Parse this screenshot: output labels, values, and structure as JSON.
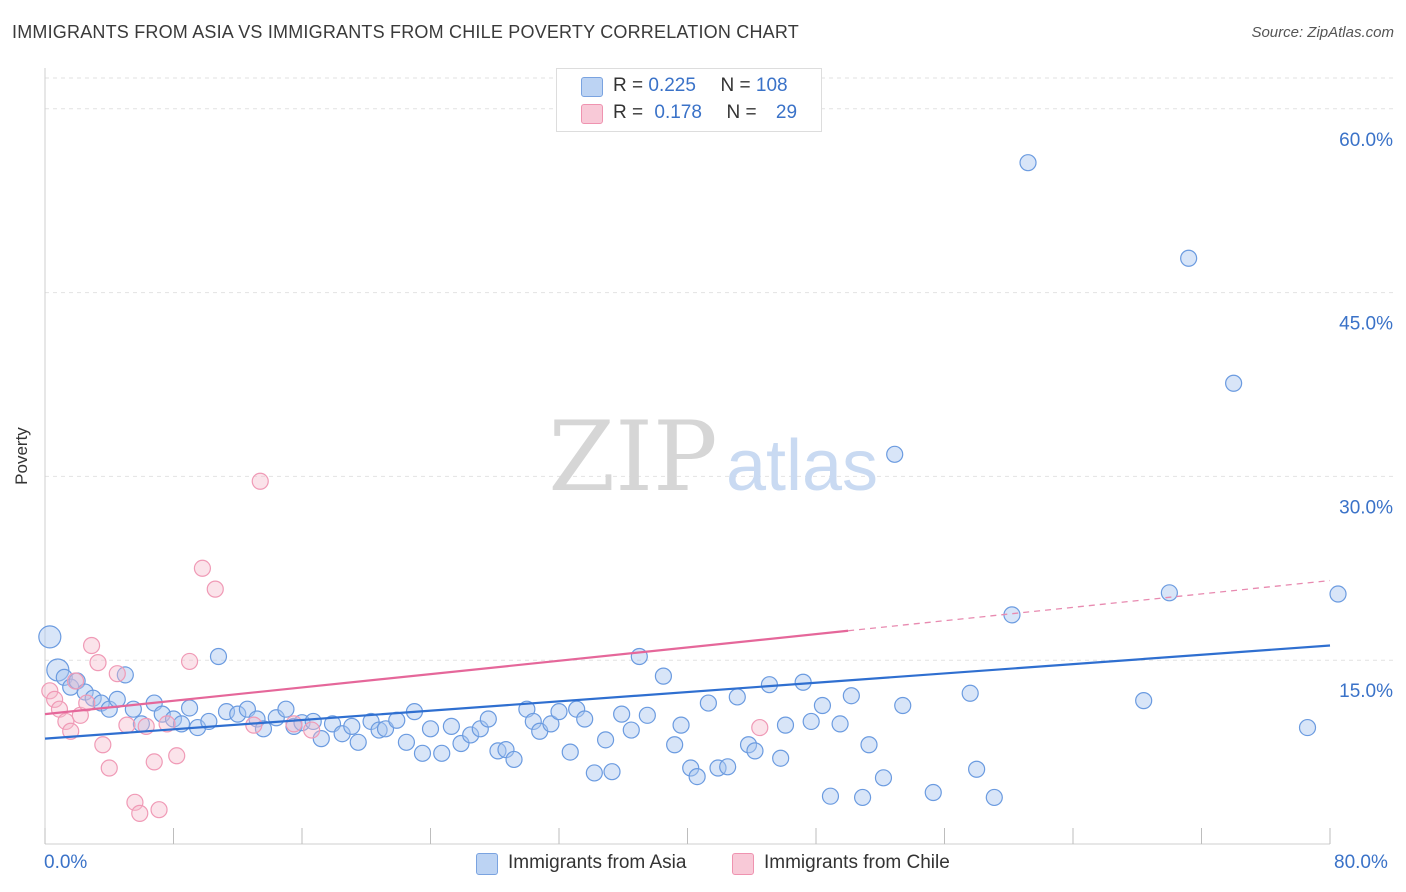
{
  "title": "IMMIGRANTS FROM ASIA VS IMMIGRANTS FROM CHILE POVERTY CORRELATION CHART",
  "source": "Source: ZipAtlas.com",
  "watermark": {
    "zip": "ZIP",
    "atlas": "atlas"
  },
  "legend": {
    "asia": {
      "r_label": "R =",
      "r_value": "0.225",
      "n_label": "N =",
      "n_value": "108",
      "color": "#a9c6f0"
    },
    "chile": {
      "r_label": "R =",
      "r_value": "0.178",
      "n_label": "N =",
      "n_value": "29",
      "color": "#f6b9cb"
    }
  },
  "bottom_legend": {
    "asia": "Immigrants from Asia",
    "chile": "Immigrants from Chile"
  },
  "chart_data": {
    "type": "scatter",
    "title": "IMMIGRANTS FROM ASIA VS IMMIGRANTS FROM CHILE POVERTY CORRELATION CHART",
    "xlabel": "",
    "ylabel": "Poverty",
    "xlim": [
      0,
      80
    ],
    "ylim": [
      0,
      63
    ],
    "x_tick_labels": [
      "0.0%",
      "80.0%"
    ],
    "y_ticks": [
      15,
      30,
      45,
      60
    ],
    "y_tick_labels": [
      "15.0%",
      "30.0%",
      "45.0%",
      "60.0%"
    ],
    "series": [
      {
        "name": "Immigrants from Asia",
        "color": "#6b9be0",
        "trend": {
          "x0": 0,
          "y0": 8.6,
          "x1": 80,
          "y1": 16.2
        },
        "points": [
          [
            0.3,
            16.9
          ],
          [
            0.8,
            14.2
          ],
          [
            1.2,
            13.6
          ],
          [
            1.6,
            12.8
          ],
          [
            2.0,
            13.3
          ],
          [
            2.5,
            12.4
          ],
          [
            3.0,
            11.9
          ],
          [
            3.5,
            11.5
          ],
          [
            4.0,
            11.0
          ],
          [
            4.5,
            11.8
          ],
          [
            5.0,
            13.8
          ],
          [
            5.5,
            11.0
          ],
          [
            6.0,
            9.8
          ],
          [
            6.8,
            11.5
          ],
          [
            7.3,
            10.6
          ],
          [
            8.0,
            10.2
          ],
          [
            8.5,
            9.8
          ],
          [
            9.0,
            11.1
          ],
          [
            9.5,
            9.5
          ],
          [
            10.2,
            10.0
          ],
          [
            10.8,
            15.3
          ],
          [
            11.3,
            10.8
          ],
          [
            12.0,
            10.6
          ],
          [
            12.6,
            11.0
          ],
          [
            13.2,
            10.2
          ],
          [
            13.6,
            9.4
          ],
          [
            14.4,
            10.3
          ],
          [
            15.0,
            11.0
          ],
          [
            15.5,
            9.6
          ],
          [
            16.0,
            9.9
          ],
          [
            16.7,
            10.0
          ],
          [
            17.2,
            8.6
          ],
          [
            17.9,
            9.8
          ],
          [
            18.5,
            9.0
          ],
          [
            19.1,
            9.6
          ],
          [
            19.5,
            8.3
          ],
          [
            20.3,
            10.0
          ],
          [
            20.8,
            9.3
          ],
          [
            21.2,
            9.4
          ],
          [
            21.9,
            10.1
          ],
          [
            22.5,
            8.3
          ],
          [
            23.0,
            10.8
          ],
          [
            23.5,
            7.4
          ],
          [
            24.0,
            9.4
          ],
          [
            24.7,
            7.4
          ],
          [
            25.3,
            9.6
          ],
          [
            25.9,
            8.2
          ],
          [
            26.5,
            8.9
          ],
          [
            27.1,
            9.4
          ],
          [
            27.6,
            10.2
          ],
          [
            28.2,
            7.6
          ],
          [
            28.7,
            7.7
          ],
          [
            29.2,
            6.9
          ],
          [
            30.0,
            11.0
          ],
          [
            30.4,
            10.0
          ],
          [
            30.8,
            9.2
          ],
          [
            31.5,
            9.8
          ],
          [
            32.0,
            10.8
          ],
          [
            32.7,
            7.5
          ],
          [
            33.1,
            11.0
          ],
          [
            33.6,
            10.2
          ],
          [
            34.2,
            5.8
          ],
          [
            34.9,
            8.5
          ],
          [
            35.3,
            5.9
          ],
          [
            35.9,
            10.6
          ],
          [
            36.5,
            9.3
          ],
          [
            37.0,
            15.3
          ],
          [
            37.5,
            10.5
          ],
          [
            38.5,
            13.7
          ],
          [
            39.2,
            8.1
          ],
          [
            39.6,
            9.7
          ],
          [
            40.2,
            6.2
          ],
          [
            40.6,
            5.5
          ],
          [
            41.3,
            11.5
          ],
          [
            41.9,
            6.2
          ],
          [
            42.5,
            6.3
          ],
          [
            43.1,
            12.0
          ],
          [
            43.8,
            8.1
          ],
          [
            44.2,
            7.6
          ],
          [
            45.1,
            13.0
          ],
          [
            45.8,
            7.0
          ],
          [
            46.1,
            9.7
          ],
          [
            47.2,
            13.2
          ],
          [
            47.7,
            10.0
          ],
          [
            48.4,
            11.3
          ],
          [
            48.9,
            3.9
          ],
          [
            49.5,
            9.8
          ],
          [
            50.2,
            12.1
          ],
          [
            50.9,
            3.8
          ],
          [
            51.3,
            8.1
          ],
          [
            52.2,
            5.4
          ],
          [
            52.9,
            31.8
          ],
          [
            53.4,
            11.3
          ],
          [
            55.3,
            4.2
          ],
          [
            57.6,
            12.3
          ],
          [
            58.0,
            6.1
          ],
          [
            59.1,
            3.8
          ],
          [
            60.2,
            18.7
          ],
          [
            61.2,
            55.6
          ],
          [
            68.4,
            11.7
          ],
          [
            70.0,
            20.5
          ],
          [
            71.2,
            47.8
          ],
          [
            74.0,
            37.6
          ],
          [
            78.6,
            9.5
          ],
          [
            80.5,
            20.4
          ]
        ]
      },
      {
        "name": "Immigrants from Chile",
        "color": "#f09ab6",
        "trend": {
          "x0": 0,
          "y0": 10.6,
          "x1": 50,
          "y1": 17.4,
          "dash_to_x": 80,
          "dash_to_y": 21.5
        },
        "points": [
          [
            0.3,
            12.5
          ],
          [
            0.6,
            11.8
          ],
          [
            0.9,
            11.0
          ],
          [
            1.3,
            10.0
          ],
          [
            1.6,
            9.2
          ],
          [
            1.9,
            13.3
          ],
          [
            2.2,
            10.5
          ],
          [
            2.6,
            11.5
          ],
          [
            2.9,
            16.2
          ],
          [
            3.3,
            14.8
          ],
          [
            3.6,
            8.1
          ],
          [
            4.0,
            6.2
          ],
          [
            4.5,
            13.9
          ],
          [
            5.1,
            9.7
          ],
          [
            5.6,
            3.4
          ],
          [
            5.9,
            2.5
          ],
          [
            6.3,
            9.6
          ],
          [
            6.8,
            6.7
          ],
          [
            7.1,
            2.8
          ],
          [
            7.6,
            9.8
          ],
          [
            8.2,
            7.2
          ],
          [
            9.0,
            14.9
          ],
          [
            9.8,
            22.5
          ],
          [
            10.6,
            20.8
          ],
          [
            13.0,
            9.7
          ],
          [
            13.4,
            29.6
          ],
          [
            15.5,
            9.8
          ],
          [
            16.6,
            9.3
          ],
          [
            44.5,
            9.5
          ]
        ]
      }
    ]
  }
}
